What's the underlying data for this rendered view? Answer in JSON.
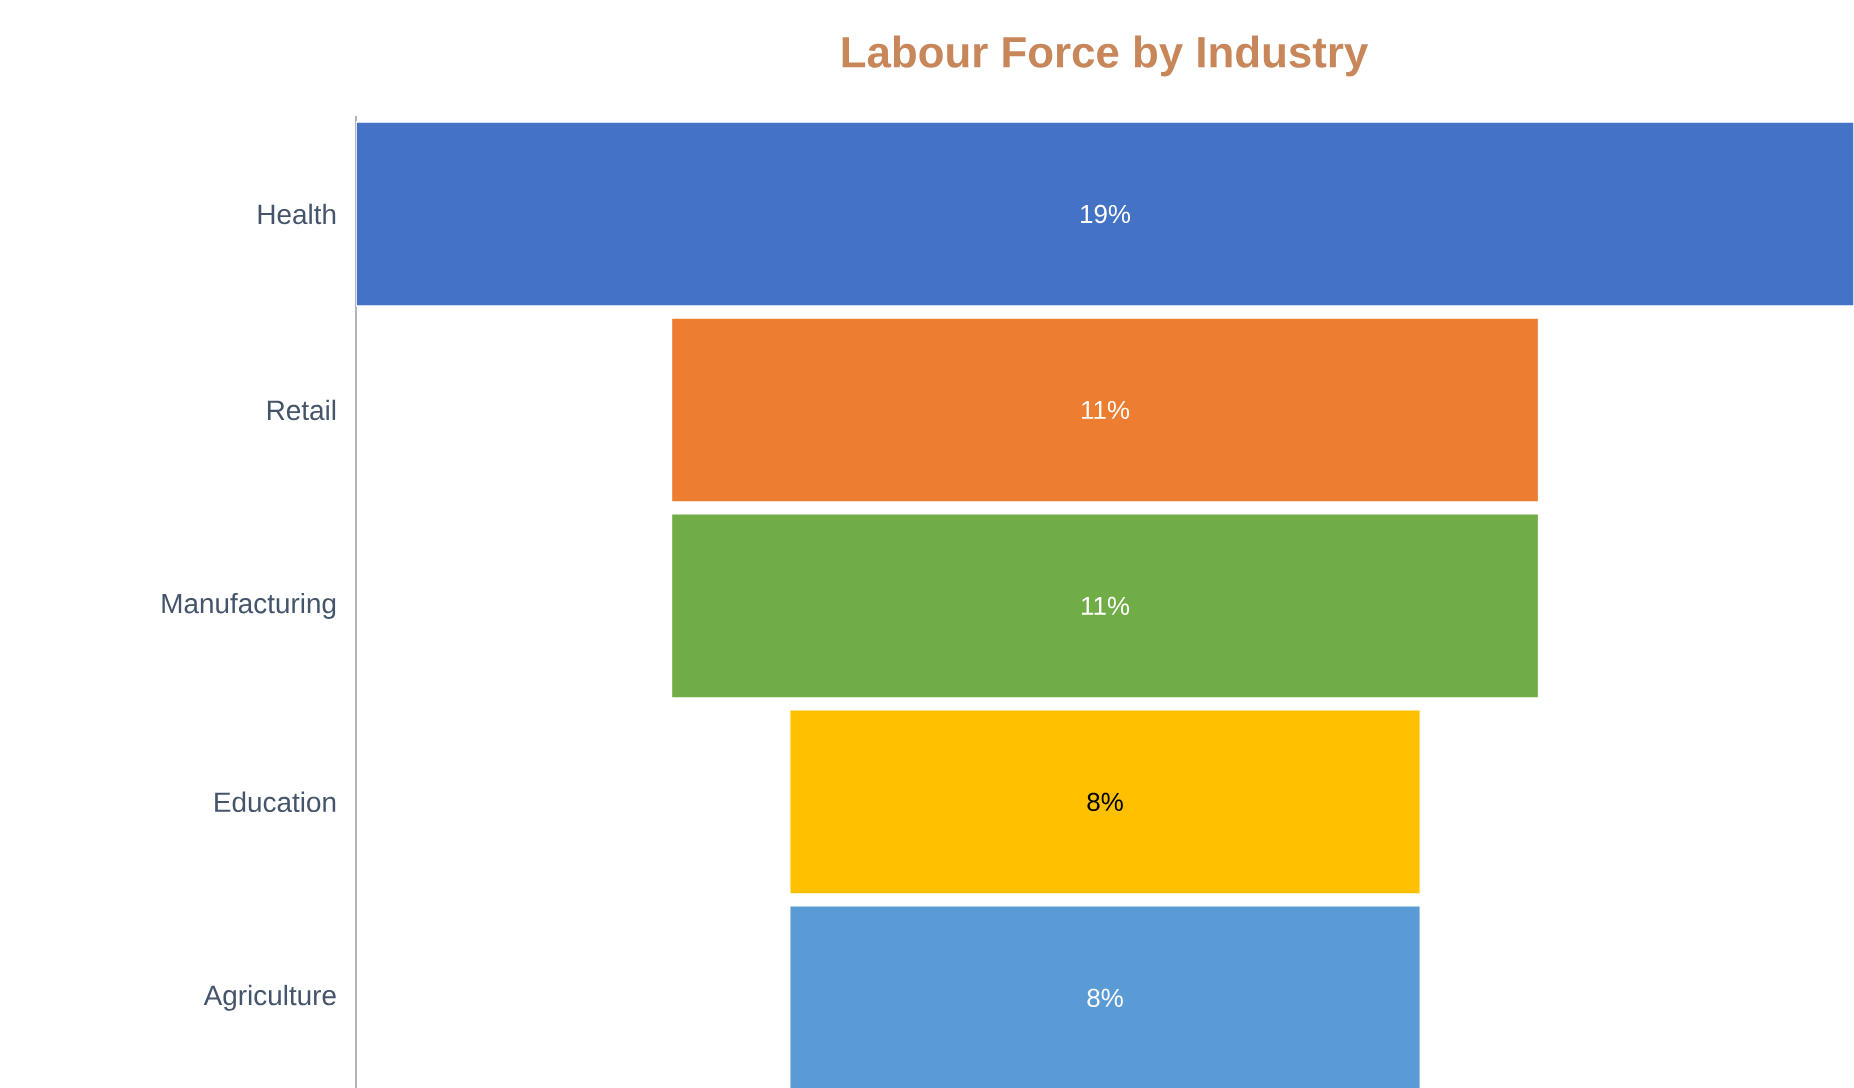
{
  "chart_data": {
    "type": "other",
    "title": "Labour Force by Industry",
    "categories": [
      "Health",
      "Retail",
      "Manufacturing",
      "Education",
      "Agriculture"
    ],
    "values": [
      19,
      11,
      11,
      8,
      8
    ],
    "colors": [
      "#4472c4",
      "#ed7d31",
      "#70ad47",
      "#ffc000",
      "#5b9bd5"
    ],
    "value_labels": [
      "19%",
      "11%",
      "11%",
      "8%",
      "8%"
    ]
  }
}
